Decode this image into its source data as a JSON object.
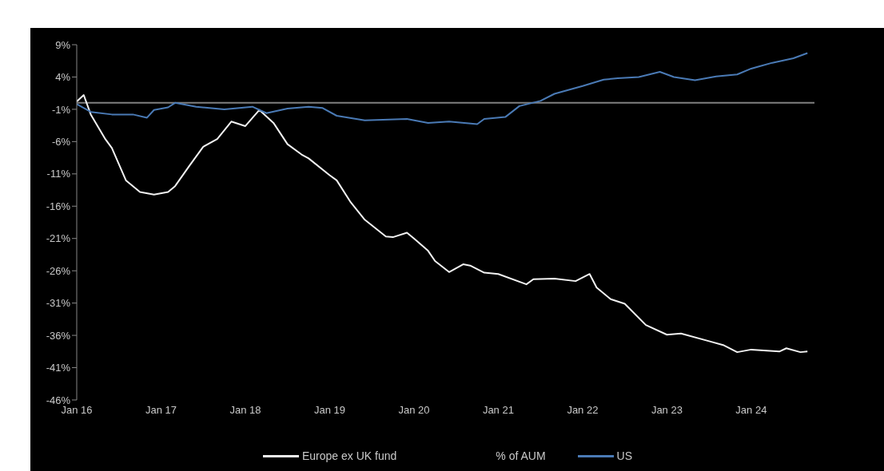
{
  "chart_data": {
    "type": "line",
    "xlim": [
      "2016-01",
      "2024-10"
    ],
    "xticks": [
      {
        "value": "2016-01",
        "label": "Jan 16"
      },
      {
        "value": "2017-01",
        "label": "Jan 17"
      },
      {
        "value": "2018-01",
        "label": "Jan 18"
      },
      {
        "value": "2019-01",
        "label": "Jan 19"
      },
      {
        "value": "2020-01",
        "label": "Jan 20"
      },
      {
        "value": "2021-01",
        "label": "Jan 21"
      },
      {
        "value": "2022-01",
        "label": "Jan 22"
      },
      {
        "value": "2023-01",
        "label": "Jan 23"
      },
      {
        "value": "2024-01",
        "label": "Jan 24"
      }
    ],
    "ylim": [
      -46,
      9
    ],
    "yticks": [
      {
        "value": 9,
        "label": "9%"
      },
      {
        "value": 4,
        "label": "4%"
      },
      {
        "value": -1,
        "label": "-1%"
      },
      {
        "value": -6,
        "label": "-6%"
      },
      {
        "value": -11,
        "label": "-11%"
      },
      {
        "value": -16,
        "label": "-16%"
      },
      {
        "value": -21,
        "label": "-21%"
      },
      {
        "value": -26,
        "label": "-26%"
      },
      {
        "value": -31,
        "label": "-31%"
      },
      {
        "value": -36,
        "label": "-36%"
      },
      {
        "value": -41,
        "label": "-41%"
      },
      {
        "value": -46,
        "label": "-46%"
      }
    ],
    "grid": false,
    "legend": "bottom",
    "marker": "none",
    "line_style": "solid",
    "ref_lines": [
      {
        "axis": "y",
        "value": 0,
        "color": "#808080"
      }
    ],
    "annotations": [
      "% of AUM"
    ],
    "series": [
      {
        "name": "Europe ex UK fund",
        "color": "#f2f2f2",
        "x": [
          "2016-01",
          "2016-02",
          "2016-03",
          "2016-05",
          "2016-06",
          "2016-08",
          "2016-10",
          "2016-12",
          "2017-02",
          "2017-03",
          "2017-05",
          "2017-07",
          "2017-09",
          "2017-11",
          "2018-01",
          "2018-03",
          "2018-05",
          "2018-07",
          "2018-09",
          "2018-10",
          "2019-01",
          "2019-02",
          "2019-04",
          "2019-06",
          "2019-09",
          "2019-10",
          "2019-12",
          "2020-01",
          "2020-03",
          "2020-04",
          "2020-06",
          "2020-08",
          "2020-09",
          "2020-11",
          "2021-01",
          "2021-05",
          "2021-06",
          "2021-09",
          "2021-12",
          "2022-02",
          "2022-03",
          "2022-05",
          "2022-07",
          "2022-10",
          "2023-01",
          "2023-03",
          "2023-07",
          "2023-09",
          "2023-11",
          "2024-01",
          "2024-05",
          "2024-06",
          "2024-08",
          "2024-09"
        ],
        "values": [
          0.2,
          1.2,
          -1.8,
          -5.5,
          -7.0,
          -12,
          -13.8,
          -14.2,
          -13.8,
          -12.9,
          -9.8,
          -6.8,
          -5.6,
          -2.9,
          -3.6,
          -1.1,
          -3.1,
          -6.4,
          -8.0,
          -8.6,
          -11.2,
          -12,
          -15.4,
          -18.1,
          -20.7,
          -20.8,
          -20.1,
          -21,
          -22.9,
          -24.5,
          -26.2,
          -25,
          -25.2,
          -26.3,
          -26.5,
          -28.1,
          -27.3,
          -27.2,
          -27.6,
          -26.5,
          -28.6,
          -30.4,
          -31.1,
          -34.4,
          -35.9,
          -35.7,
          -36.9,
          -37.5,
          -38.6,
          -38.2,
          -38.5,
          -38,
          -38.6,
          -38.5
        ]
      },
      {
        "name": "US",
        "color": "#4a7ab5",
        "x": [
          "2016-01",
          "2016-03",
          "2016-06",
          "2016-09",
          "2016-11",
          "2016-12",
          "2017-02",
          "2017-03",
          "2017-06",
          "2017-10",
          "2018-02",
          "2018-04",
          "2018-07",
          "2018-10",
          "2018-12",
          "2019-02",
          "2019-06",
          "2019-12",
          "2020-03",
          "2020-06",
          "2020-10",
          "2020-11",
          "2021-02",
          "2021-04",
          "2021-07",
          "2021-09",
          "2022-01",
          "2022-04",
          "2022-06",
          "2022-09",
          "2022-12",
          "2023-02",
          "2023-05",
          "2023-08",
          "2023-11",
          "2024-01",
          "2024-02",
          "2024-04",
          "2024-07",
          "2024-09"
        ],
        "values": [
          -0.2,
          -1.4,
          -1.8,
          -1.8,
          -2.3,
          -1.1,
          -0.7,
          0,
          -0.6,
          -1.0,
          -0.6,
          -1.6,
          -0.9,
          -0.6,
          -0.8,
          -2.0,
          -2.7,
          -2.5,
          -3.1,
          -2.9,
          -3.3,
          -2.5,
          -2.2,
          -0.5,
          0.3,
          1.4,
          2.6,
          3.6,
          3.8,
          4.0,
          4.8,
          4.0,
          3.5,
          4.1,
          4.4,
          5.3,
          5.6,
          6.2,
          6.9,
          7.7
        ]
      }
    ]
  }
}
